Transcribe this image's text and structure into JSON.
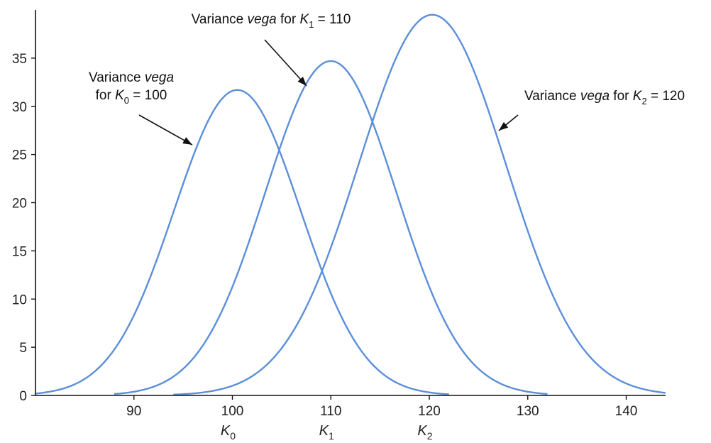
{
  "chart_data": {
    "type": "line",
    "title": "",
    "xlabel": "",
    "ylabel": "",
    "xlim": [
      80,
      144
    ],
    "ylim": [
      0,
      40
    ],
    "grid": false,
    "line_color": "#5b8fd9",
    "x_ticks": [
      90,
      100,
      110,
      120,
      130,
      140
    ],
    "y_ticks": [
      0,
      5,
      10,
      15,
      20,
      25,
      30,
      35
    ],
    "strike_labels": [
      {
        "x": 100,
        "base": "K",
        "sub": "0"
      },
      {
        "x": 110,
        "base": "K",
        "sub": "1"
      },
      {
        "x": 120,
        "base": "K",
        "sub": "2"
      }
    ],
    "series": [
      {
        "center": 100.5,
        "peak": 31.7,
        "x_start": 80,
        "x_end": 122,
        "x": [
          80,
          84,
          88,
          90,
          92,
          94,
          96,
          98,
          100,
          102,
          104,
          106,
          108,
          110,
          112,
          114,
          116,
          118,
          120,
          122
        ],
        "y": [
          0.2,
          1.2,
          3.6,
          6.2,
          10.0,
          14.7,
          19.8,
          25.5,
          31.5,
          31.0,
          26.5,
          21.0,
          15.5,
          10.2,
          6.0,
          3.2,
          1.5,
          0.6,
          0.2,
          0.1
        ]
      },
      {
        "center": 110,
        "peak": 34.7,
        "x_start": 88,
        "x_end": 132,
        "x": [
          88,
          90,
          92,
          94,
          96,
          98,
          100,
          102,
          104,
          106,
          108,
          110,
          112,
          114,
          116,
          118,
          120,
          122,
          124,
          126,
          128,
          130,
          132
        ],
        "y": [
          0.1,
          0.3,
          0.9,
          2.0,
          3.9,
          6.9,
          11.2,
          16.4,
          22.3,
          28.2,
          33.0,
          34.7,
          33.0,
          28.2,
          22.3,
          16.4,
          11.2,
          6.9,
          3.9,
          2.0,
          0.9,
          0.3,
          0.1
        ]
      },
      {
        "center": 120.3,
        "peak": 39.5,
        "x_start": 94,
        "x_end": 144,
        "x": [
          94,
          96,
          98,
          100,
          102,
          104,
          106,
          108,
          110,
          112,
          114,
          116,
          118,
          120,
          122,
          124,
          126,
          128,
          130,
          132,
          134,
          136,
          138,
          140,
          142,
          144
        ],
        "y": [
          0.0,
          0.2,
          0.6,
          1.4,
          3.0,
          5.5,
          9.1,
          13.8,
          19.3,
          25.0,
          30.3,
          34.8,
          38.0,
          39.5,
          38.8,
          35.9,
          31.3,
          25.8,
          20.1,
          14.8,
          10.3,
          6.7,
          4.1,
          2.3,
          1.2,
          0.3
        ]
      }
    ],
    "annotations": [
      {
        "lines": [
          [
            {
              "t": "Variance ",
              "s": "n"
            },
            {
              "t": "vega",
              "s": "i"
            }
          ],
          [
            {
              "t": "for ",
              "s": "n"
            },
            {
              "t": "K",
              "s": "i"
            },
            {
              "t": "0",
              "s": "sub"
            },
            {
              "t": " = 100",
              "s": "n"
            }
          ]
        ]
      },
      {
        "lines": [
          [
            {
              "t": "Variance ",
              "s": "n"
            },
            {
              "t": "vega",
              "s": "i"
            },
            {
              "t": " for ",
              "s": "n"
            },
            {
              "t": "K",
              "s": "i"
            },
            {
              "t": "1",
              "s": "sub"
            },
            {
              "t": " = 110",
              "s": "n"
            }
          ]
        ]
      },
      {
        "lines": [
          [
            {
              "t": "Variance ",
              "s": "n"
            },
            {
              "t": "vega",
              "s": "i"
            },
            {
              "t": " for ",
              "s": "n"
            },
            {
              "t": "K",
              "s": "i"
            },
            {
              "t": "2",
              "s": "sub"
            },
            {
              "t": " = 120",
              "s": "n"
            }
          ]
        ]
      }
    ]
  }
}
